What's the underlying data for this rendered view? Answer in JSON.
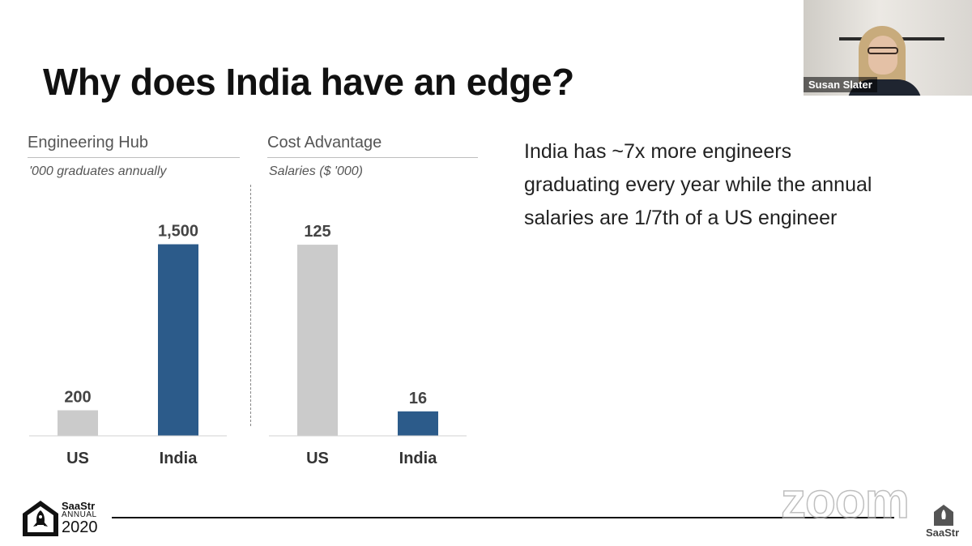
{
  "slide": {
    "title": "Why does India have an edge?",
    "body_text": "India has ~7x more engineers graduating every year while the annual salaries are 1/7th of a US engineer"
  },
  "colors": {
    "us_bar": "#cbcbcb",
    "india_bar": "#2c5b8a",
    "value_label": "#444444"
  },
  "chart_data": [
    {
      "type": "bar",
      "title": "Engineering  Hub",
      "subtitle": "'000 graduates annually",
      "categories": [
        "US",
        "India"
      ],
      "values": [
        200,
        1500
      ],
      "value_labels": [
        "200",
        "1,500"
      ],
      "ylim": [
        0,
        1700
      ],
      "grid": false
    },
    {
      "type": "bar",
      "title": "Cost Advantage",
      "subtitle": "Salaries ($ '000)",
      "categories": [
        "US",
        "India"
      ],
      "values": [
        125,
        16
      ],
      "value_labels": [
        "125",
        "16"
      ],
      "ylim": [
        0,
        142
      ],
      "grid": false
    }
  ],
  "video": {
    "participant_name": "Susan Slater"
  },
  "branding": {
    "logo_name": "SaaStr",
    "logo_sub": "ANNUAL",
    "logo_year": "2020",
    "watermark": "zoom",
    "corner_label": "SaaStr",
    "logo_icon": "saastr-rocket-icon"
  }
}
